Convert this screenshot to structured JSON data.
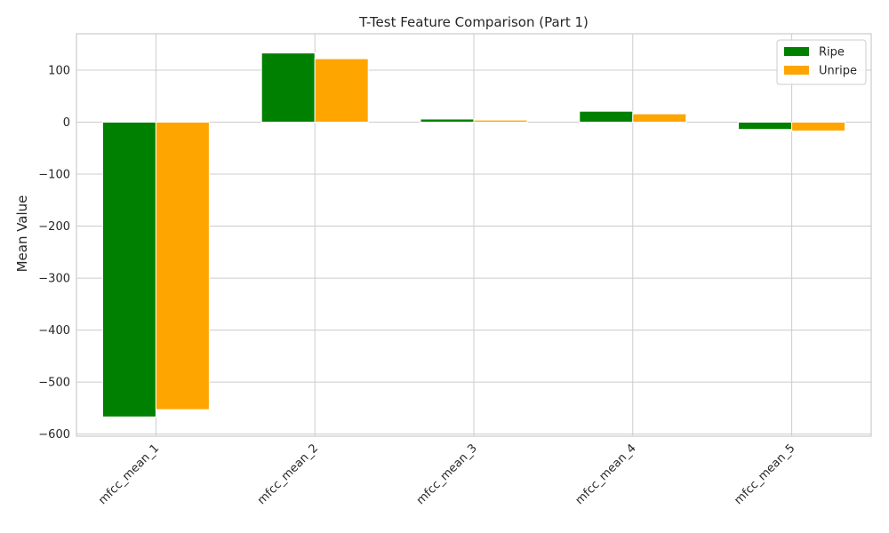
{
  "chart_data": {
    "type": "bar",
    "title": "T-Test Feature Comparison (Part 1)",
    "xlabel": "",
    "ylabel": "Mean Value",
    "categories": [
      "mfcc_mean_1",
      "mfcc_mean_2",
      "mfcc_mean_3",
      "mfcc_mean_4",
      "mfcc_mean_5"
    ],
    "series": [
      {
        "name": "Ripe",
        "color": "#008000",
        "values": [
          -567,
          133,
          6,
          21,
          -14
        ]
      },
      {
        "name": "Unripe",
        "color": "#FFA500",
        "values": [
          -553,
          122,
          4,
          16,
          -17
        ]
      }
    ],
    "ylim": [
      -604,
      170
    ],
    "yticks": [
      100,
      0,
      -100,
      -200,
      -300,
      -400,
      -500,
      -600
    ],
    "ytick_labels": [
      "100",
      "0",
      "−100",
      "−200",
      "−300",
      "−400",
      "−500",
      "−600"
    ],
    "grid": true,
    "legend_position": "top-right",
    "xtick_rotation": 45
  }
}
